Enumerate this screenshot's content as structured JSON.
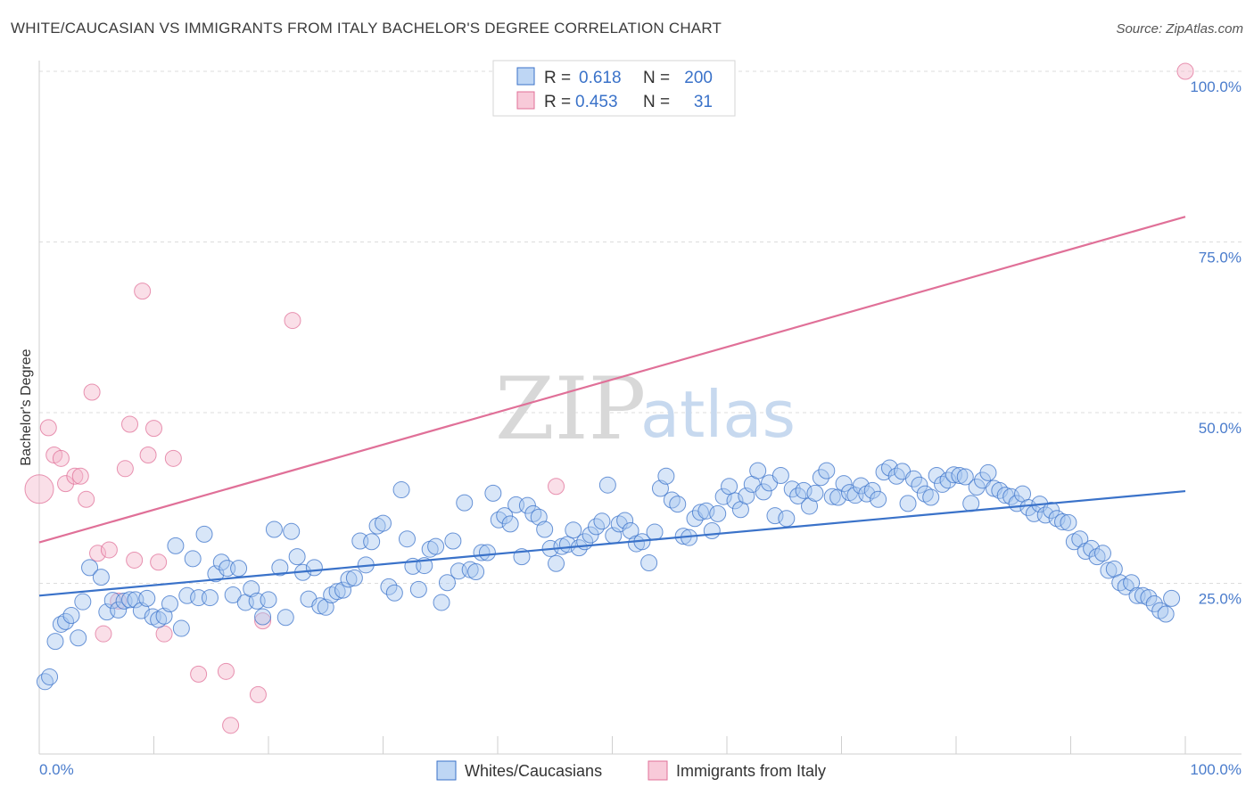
{
  "title": "WHITE/CAUCASIAN VS IMMIGRANTS FROM ITALY BACHELOR'S DEGREE CORRELATION CHART",
  "source": "Source: ZipAtlas.com",
  "watermark": {
    "zip": "ZIP",
    "atlas": "atlas"
  },
  "colors": {
    "blue": "#3a72c9",
    "blue_fill": "#a8c8f0",
    "pink": "#e07098",
    "pink_fill": "#f5b8cc"
  },
  "legend": {
    "rows": [
      {
        "r_label": "R =",
        "r_value": "0.618",
        "n_label": "N =",
        "n_value": "200"
      },
      {
        "r_label": "R =",
        "r_value": "0.453",
        "n_label": "N =",
        "n_value": "31"
      }
    ]
  },
  "bottom_legend": {
    "series1": "Whites/Caucasians",
    "series2": "Immigrants from Italy"
  },
  "chart_data": {
    "type": "scatter",
    "title": "WHITE/CAUCASIAN VS IMMIGRANTS FROM ITALY BACHELOR'S DEGREE CORRELATION CHART",
    "xlabel": "",
    "ylabel": "Bachelor's Degree",
    "xlim": [
      0,
      100
    ],
    "ylim": [
      0,
      100
    ],
    "x_tick_labels": [
      "0.0%",
      "100.0%"
    ],
    "y_tick_labels": [
      "25.0%",
      "50.0%",
      "75.0%",
      "100.0%"
    ],
    "y_ticks": [
      25,
      50,
      75,
      100
    ],
    "series": [
      {
        "name": "Whites/Caucasians",
        "R": 0.618,
        "N": 200,
        "trend": {
          "x": [
            0,
            100
          ],
          "y": [
            23.2,
            38.5
          ]
        },
        "points": [
          [
            0.5,
            10.6
          ],
          [
            0.9,
            11.3
          ],
          [
            1.4,
            16.5
          ],
          [
            1.9,
            19.0
          ],
          [
            2.3,
            19.4
          ],
          [
            2.8,
            20.3
          ],
          [
            3.4,
            17.0
          ],
          [
            3.8,
            22.3
          ],
          [
            4.4,
            27.3
          ],
          [
            5.4,
            25.9
          ],
          [
            5.9,
            20.8
          ],
          [
            6.4,
            22.5
          ],
          [
            6.9,
            21.1
          ],
          [
            7.4,
            22.4
          ],
          [
            7.9,
            22.6
          ],
          [
            8.4,
            22.6
          ],
          [
            8.9,
            21.0
          ],
          [
            9.4,
            22.8
          ],
          [
            9.9,
            20.1
          ],
          [
            10.4,
            19.7
          ],
          [
            10.9,
            20.2
          ],
          [
            11.4,
            22.0
          ],
          [
            11.9,
            30.5
          ],
          [
            12.4,
            18.4
          ],
          [
            12.9,
            23.2
          ],
          [
            13.4,
            28.6
          ],
          [
            13.9,
            22.9
          ],
          [
            14.4,
            32.2
          ],
          [
            14.9,
            22.9
          ],
          [
            15.4,
            26.4
          ],
          [
            15.9,
            28.1
          ],
          [
            16.4,
            27.2
          ],
          [
            16.9,
            23.3
          ],
          [
            17.4,
            27.2
          ],
          [
            18.0,
            22.2
          ],
          [
            18.5,
            24.2
          ],
          [
            19.0,
            22.4
          ],
          [
            19.5,
            20.1
          ],
          [
            20.0,
            22.6
          ],
          [
            20.5,
            32.9
          ],
          [
            21.0,
            27.3
          ],
          [
            21.5,
            20.0
          ],
          [
            22.0,
            32.6
          ],
          [
            22.5,
            28.9
          ],
          [
            23.0,
            26.6
          ],
          [
            23.5,
            22.7
          ],
          [
            24.0,
            27.3
          ],
          [
            24.5,
            21.7
          ],
          [
            25.0,
            21.5
          ],
          [
            25.5,
            23.3
          ],
          [
            26.0,
            23.8
          ],
          [
            26.5,
            24.0
          ],
          [
            27.0,
            25.6
          ],
          [
            27.5,
            25.8
          ],
          [
            28.0,
            31.2
          ],
          [
            28.5,
            27.7
          ],
          [
            29.0,
            31.1
          ],
          [
            29.5,
            33.4
          ],
          [
            30.0,
            33.8
          ],
          [
            30.5,
            24.5
          ],
          [
            31.0,
            23.6
          ],
          [
            31.6,
            38.7
          ],
          [
            32.1,
            31.5
          ],
          [
            32.6,
            27.5
          ],
          [
            33.1,
            24.1
          ],
          [
            33.6,
            27.6
          ],
          [
            34.1,
            30.0
          ],
          [
            34.6,
            30.4
          ],
          [
            35.1,
            22.2
          ],
          [
            35.6,
            25.1
          ],
          [
            36.1,
            31.2
          ],
          [
            36.6,
            26.8
          ],
          [
            37.1,
            36.8
          ],
          [
            37.6,
            27.0
          ],
          [
            38.1,
            26.7
          ],
          [
            38.6,
            29.5
          ],
          [
            39.1,
            29.5
          ],
          [
            39.6,
            38.2
          ],
          [
            40.1,
            34.3
          ],
          [
            40.6,
            34.9
          ],
          [
            41.1,
            33.7
          ],
          [
            41.6,
            36.5
          ],
          [
            42.1,
            28.9
          ],
          [
            42.6,
            36.4
          ],
          [
            43.1,
            35.2
          ],
          [
            43.6,
            34.7
          ],
          [
            44.1,
            32.9
          ],
          [
            44.6,
            30.1
          ],
          [
            45.1,
            27.9
          ],
          [
            45.6,
            30.4
          ],
          [
            46.1,
            30.7
          ],
          [
            46.6,
            32.8
          ],
          [
            47.1,
            30.2
          ],
          [
            47.6,
            31.1
          ],
          [
            48.1,
            32.1
          ],
          [
            48.6,
            33.3
          ],
          [
            49.1,
            34.1
          ],
          [
            49.6,
            39.4
          ],
          [
            50.1,
            32.0
          ],
          [
            50.6,
            33.7
          ],
          [
            51.1,
            34.2
          ],
          [
            51.6,
            32.7
          ],
          [
            52.1,
            30.8
          ],
          [
            52.6,
            31.1
          ],
          [
            53.2,
            28.0
          ],
          [
            53.7,
            32.5
          ],
          [
            54.2,
            38.9
          ],
          [
            54.7,
            40.7
          ],
          [
            55.2,
            37.2
          ],
          [
            55.7,
            36.6
          ],
          [
            56.2,
            31.9
          ],
          [
            56.7,
            31.7
          ],
          [
            57.2,
            34.5
          ],
          [
            57.7,
            35.4
          ],
          [
            58.2,
            35.6
          ],
          [
            58.7,
            32.7
          ],
          [
            59.2,
            35.2
          ],
          [
            59.7,
            37.7
          ],
          [
            60.2,
            39.2
          ],
          [
            60.7,
            37.1
          ],
          [
            61.2,
            35.8
          ],
          [
            61.7,
            37.8
          ],
          [
            62.2,
            39.5
          ],
          [
            62.7,
            41.5
          ],
          [
            63.2,
            38.4
          ],
          [
            63.7,
            39.7
          ],
          [
            64.2,
            34.9
          ],
          [
            64.7,
            40.8
          ],
          [
            65.2,
            34.5
          ],
          [
            65.7,
            38.8
          ],
          [
            66.2,
            37.8
          ],
          [
            66.7,
            38.6
          ],
          [
            67.2,
            36.3
          ],
          [
            67.7,
            38.2
          ],
          [
            68.2,
            40.5
          ],
          [
            68.7,
            41.5
          ],
          [
            69.2,
            37.7
          ],
          [
            69.7,
            37.6
          ],
          [
            70.2,
            39.6
          ],
          [
            70.7,
            38.3
          ],
          [
            71.2,
            37.9
          ],
          [
            71.7,
            39.3
          ],
          [
            72.2,
            38.1
          ],
          [
            72.7,
            38.6
          ],
          [
            73.2,
            37.3
          ],
          [
            73.7,
            41.3
          ],
          [
            74.2,
            41.9
          ],
          [
            74.8,
            40.7
          ],
          [
            75.3,
            41.4
          ],
          [
            75.8,
            36.7
          ],
          [
            76.3,
            40.3
          ],
          [
            76.8,
            39.4
          ],
          [
            77.3,
            38.1
          ],
          [
            77.8,
            37.6
          ],
          [
            78.3,
            40.8
          ],
          [
            78.8,
            39.5
          ],
          [
            79.3,
            40.1
          ],
          [
            79.8,
            40.9
          ],
          [
            80.3,
            40.8
          ],
          [
            80.8,
            40.6
          ],
          [
            81.3,
            36.7
          ],
          [
            81.8,
            39.1
          ],
          [
            82.3,
            40.1
          ],
          [
            82.8,
            41.2
          ],
          [
            83.3,
            38.9
          ],
          [
            83.8,
            38.6
          ],
          [
            84.3,
            37.9
          ],
          [
            84.8,
            37.7
          ],
          [
            85.3,
            36.7
          ],
          [
            85.8,
            38.1
          ],
          [
            86.3,
            36.1
          ],
          [
            86.8,
            35.2
          ],
          [
            87.3,
            36.6
          ],
          [
            87.8,
            35.0
          ],
          [
            88.3,
            35.7
          ],
          [
            88.8,
            34.5
          ],
          [
            89.3,
            34.0
          ],
          [
            89.8,
            33.9
          ],
          [
            90.3,
            31.1
          ],
          [
            90.8,
            31.5
          ],
          [
            91.3,
            29.7
          ],
          [
            91.8,
            30.1
          ],
          [
            92.3,
            28.9
          ],
          [
            92.8,
            29.4
          ],
          [
            93.3,
            26.9
          ],
          [
            93.8,
            27.1
          ],
          [
            94.3,
            25.1
          ],
          [
            94.8,
            24.5
          ],
          [
            95.3,
            25.1
          ],
          [
            95.8,
            23.2
          ],
          [
            96.3,
            23.2
          ],
          [
            96.8,
            22.9
          ],
          [
            97.3,
            22.0
          ],
          [
            97.8,
            21.0
          ],
          [
            98.3,
            20.5
          ],
          [
            98.8,
            22.8
          ]
        ]
      },
      {
        "name": "Immigrants from Italy",
        "R": 0.453,
        "N": 31,
        "trend": {
          "x": [
            0,
            100
          ],
          "y": [
            31.0,
            78.7
          ]
        },
        "points": [
          [
            0.0,
            38.8
          ],
          [
            0.8,
            47.8
          ],
          [
            1.3,
            43.8
          ],
          [
            1.9,
            43.3
          ],
          [
            2.3,
            39.6
          ],
          [
            3.1,
            40.7
          ],
          [
            3.6,
            40.7
          ],
          [
            4.1,
            37.3
          ],
          [
            4.6,
            53.0
          ],
          [
            5.1,
            29.4
          ],
          [
            5.6,
            17.6
          ],
          [
            6.1,
            29.9
          ],
          [
            6.9,
            22.4
          ],
          [
            7.5,
            41.8
          ],
          [
            7.9,
            48.3
          ],
          [
            8.3,
            28.4
          ],
          [
            9.0,
            67.8
          ],
          [
            9.5,
            43.8
          ],
          [
            10.0,
            47.7
          ],
          [
            10.4,
            28.1
          ],
          [
            10.9,
            17.6
          ],
          [
            11.7,
            43.3
          ],
          [
            13.9,
            11.7
          ],
          [
            16.3,
            12.1
          ],
          [
            16.7,
            4.2
          ],
          [
            19.1,
            8.7
          ],
          [
            19.5,
            19.5
          ],
          [
            22.1,
            63.5
          ],
          [
            45.1,
            39.2
          ],
          [
            100.0,
            100.0
          ]
        ]
      }
    ]
  }
}
